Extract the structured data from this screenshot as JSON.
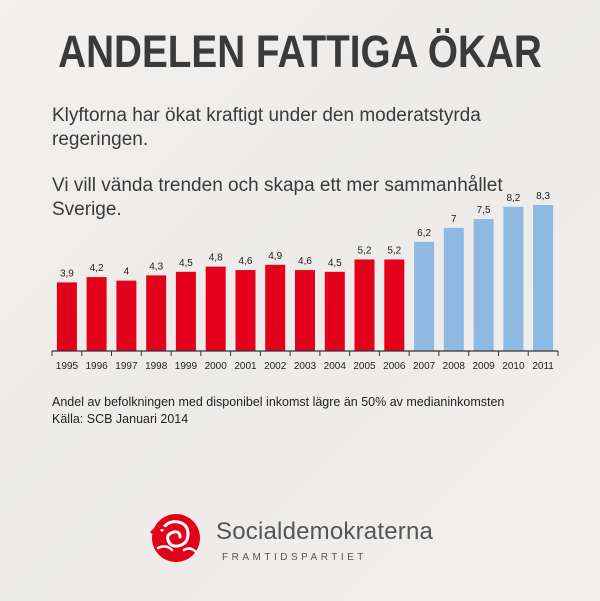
{
  "header": {
    "title": "ANDELEN FATTIGA ÖKAR",
    "intro_1": "Klyftorna har ökat kraftigt under den moderatstyrda regeringen.",
    "intro_2": "Vi vill vända trenden och skapa ett mer sammanhållet Sverige."
  },
  "chart_data": {
    "type": "bar",
    "title": "",
    "xlabel": "",
    "ylabel": "",
    "categories": [
      "1995",
      "1996",
      "1997",
      "1998",
      "1999",
      "2000",
      "2001",
      "2002",
      "2003",
      "2004",
      "2005",
      "2006",
      "2007",
      "2008",
      "2009",
      "2010",
      "2011"
    ],
    "values": [
      3.9,
      4.2,
      4,
      4.3,
      4.5,
      4.8,
      4.6,
      4.9,
      4.6,
      4.5,
      5.2,
      5.2,
      6.2,
      7,
      7.5,
      8.2,
      8.3
    ],
    "data_labels": [
      "3,9",
      "4,2",
      "4",
      "4,3",
      "4,5",
      "4,8",
      "4,6",
      "4,9",
      "4,6",
      "4,5",
      "5,2",
      "5,2",
      "6,2",
      "7",
      "7,5",
      "8,2",
      "8,3"
    ],
    "ylim": [
      0,
      8.3
    ],
    "grid": false,
    "colors": {
      "1995-2006": "#e3001b",
      "2007-2011": "#8db9e2"
    },
    "bar_colors": [
      "#e3001b",
      "#e3001b",
      "#e3001b",
      "#e3001b",
      "#e3001b",
      "#e3001b",
      "#e3001b",
      "#e3001b",
      "#e3001b",
      "#e3001b",
      "#e3001b",
      "#e3001b",
      "#8db9e2",
      "#8db9e2",
      "#8db9e2",
      "#8db9e2",
      "#8db9e2"
    ]
  },
  "footnote": {
    "line_1": "Andel av befolkningen med disponibel inkomst lägre än 50% av medianinkomsten",
    "line_2": "Källa: SCB Januari 2014"
  },
  "logo": {
    "name": "Socialdemokraterna",
    "tagline": "FRAMTIDSPARTIET",
    "icon": "rose-logo-icon"
  }
}
